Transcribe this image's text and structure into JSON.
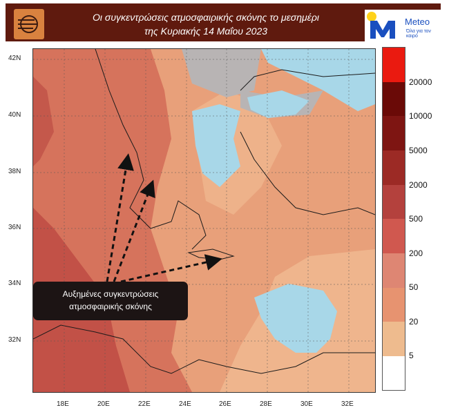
{
  "header": {
    "title_line1": "Οι συγκεντρώσεις ατμοσφαιρικής σκόνης το μεσημέρι",
    "title_line2": "της Κυριακής 14 Μαΐου 2023",
    "brand_name": "Meteo",
    "brand_tagline": "Όλα για τον καιρό",
    "left_logo_icon": "wind-sun-logo-icon",
    "right_logo_icon": "meteo-m-logo-icon"
  },
  "map": {
    "lat_labels": [
      "42N",
      "40N",
      "38N",
      "36N",
      "34N",
      "32N"
    ],
    "lon_labels": [
      "18E",
      "20E",
      "22E",
      "24E",
      "26E",
      "28E",
      "30E",
      "32E"
    ],
    "colors": {
      "sea_low": "#a8d7e8",
      "land_no_data": "#b8b4b4",
      "coast": "#1a1a1a"
    }
  },
  "annotation": {
    "line1": "Αυξημένες συγκεντρώσεις",
    "line2": "ατμοσφαιρικής σκόνης"
  },
  "legend": {
    "labels": [
      "20000",
      "10000",
      "5000",
      "2000",
      "500",
      "200",
      "50",
      "20",
      "5"
    ],
    "colors": [
      "#ea1a10",
      "#6a0a07",
      "#7e1512",
      "#9c2a25",
      "#b4413d",
      "#d0584f",
      "#de8673",
      "#e79370",
      "#eebb8e",
      "#ffffff"
    ]
  }
}
